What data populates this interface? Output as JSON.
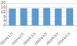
{
  "chart_data": {
    "type": "bar",
    "categories": [
      "2016年1月",
      "2016年2月",
      "2016年3月",
      "2016年4月",
      "2016年5月",
      "2016年6月"
    ],
    "values": [
      15.2,
      15.5,
      15.3,
      15.6,
      15.4,
      15.5
    ],
    "color": "#5b9bd5",
    "ylim": [
      0,
      20
    ],
    "yticks": [
      0,
      4,
      8,
      12,
      16,
      20
    ],
    "grid": true
  }
}
